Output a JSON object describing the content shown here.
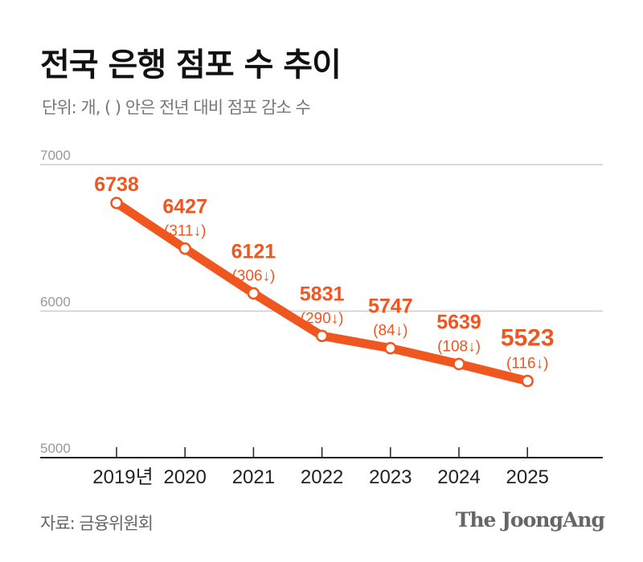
{
  "title": "전국 은행 점포 수 추이",
  "subtitle": "단위: 개, ( ) 안은 전년 대비 점포 감소 수",
  "source": "자료: 금융위원회",
  "logo": "The JoongAng",
  "colors": {
    "line": "#f0561f",
    "label": "#f0561f",
    "grid": "#cccccc",
    "axis": "#222222",
    "tick_label": "#999999"
  },
  "chart_data": {
    "type": "line",
    "categories": [
      "2019년",
      "2020",
      "2021",
      "2022",
      "2023",
      "2024",
      "2025"
    ],
    "values": [
      6738,
      6427,
      6121,
      5831,
      5747,
      5639,
      5523
    ],
    "changes": [
      "",
      "(311↓)",
      "(306↓)",
      "(290↓)",
      "(84↓)",
      "(108↓)",
      "(116↓)"
    ],
    "yticks": [
      "7000",
      "6000",
      "5000"
    ],
    "ylim": [
      5000,
      7000
    ],
    "grid": true
  }
}
